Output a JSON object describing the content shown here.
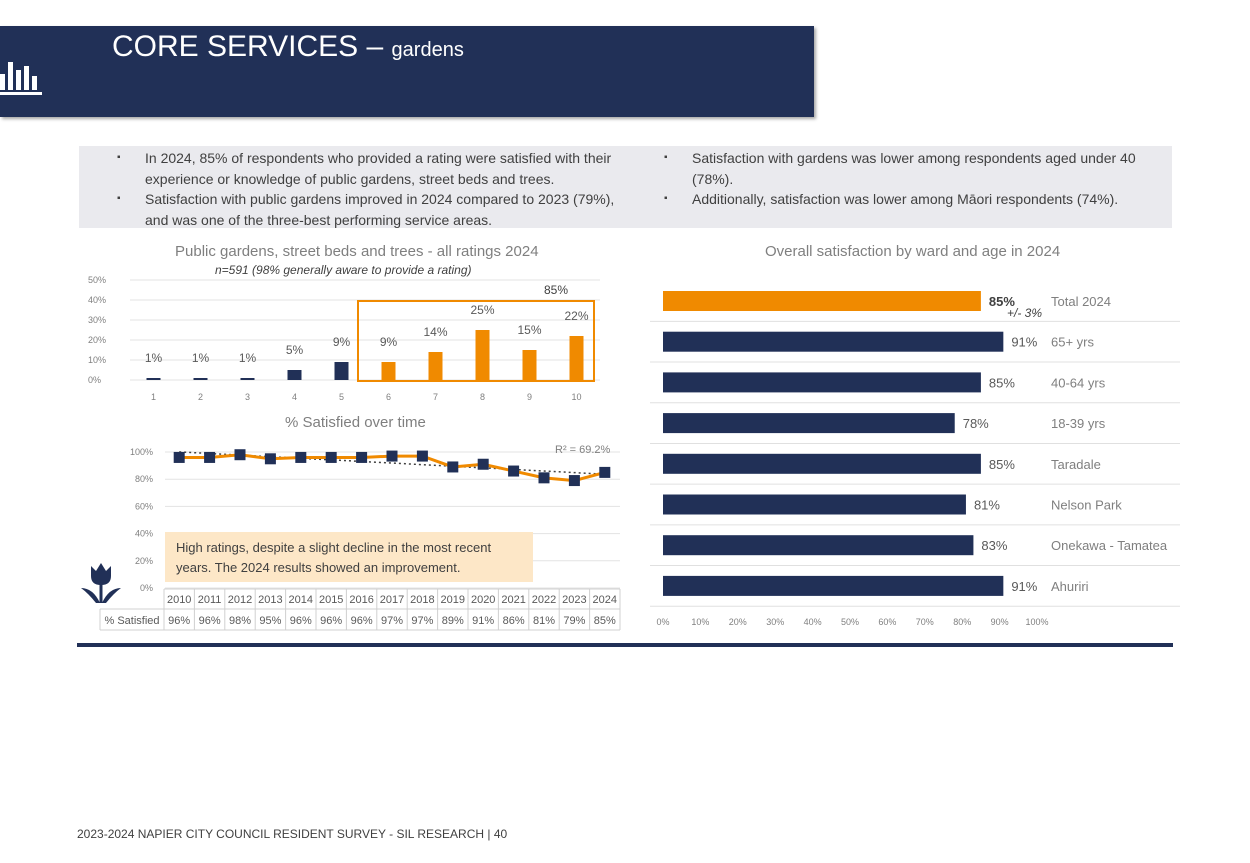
{
  "header": {
    "title_main": "CORE SERVICES – ",
    "title_sub": "gardens"
  },
  "bullets_left": [
    "In 2024, 85% of respondents who provided a rating were satisfied with their experience or knowledge of public gardens, street beds and trees.",
    "Satisfaction with public gardens improved in 2024 compared to 2023 (79%), and was one of the three-best performing service areas."
  ],
  "bullets_right": [
    "Satisfaction with gardens was lower among respondents aged under 40 (78%).",
    "Additionally, satisfaction was lower among Māori respondents (74%)."
  ],
  "note": "High ratings, despite a slight decline in the most recent years. The 2024 results showed an improvement.",
  "footer": "2023-2024 NAPIER CITY COUNCIL RESIDENT SURVEY - SIL RESEARCH | 40",
  "colors": {
    "navy": "#213057",
    "orange": "#f08a00"
  },
  "chart_data": [
    {
      "type": "bar",
      "title": "Public gardens, street beds and trees - all ratings 2024",
      "subtitle": "n=591 (98% generally aware to provide a rating)",
      "categories": [
        "1",
        "2",
        "3",
        "4",
        "5",
        "6",
        "7",
        "8",
        "9",
        "10"
      ],
      "values": [
        1,
        1,
        1,
        5,
        9,
        9,
        14,
        25,
        15,
        22
      ],
      "labels": [
        "1%",
        "1%",
        "1%",
        "5%",
        "9%",
        "9%",
        "14%",
        "25%",
        "15%",
        "22%"
      ],
      "highlight_label": "85%",
      "ylim": [
        0,
        50
      ],
      "yticks": [
        "0%",
        "10%",
        "20%",
        "30%",
        "40%",
        "50%"
      ]
    },
    {
      "type": "line",
      "title": "% Satisfied over time",
      "row_label": "% Satisfied",
      "x": [
        "2010",
        "2011",
        "2012",
        "2013",
        "2014",
        "2015",
        "2016",
        "2017",
        "2018",
        "2019",
        "2020",
        "2021",
        "2022",
        "2023",
        "2024"
      ],
      "values": [
        96,
        96,
        98,
        95,
        96,
        96,
        96,
        97,
        97,
        89,
        91,
        86,
        81,
        79,
        85
      ],
      "labels": [
        "96%",
        "96%",
        "98%",
        "95%",
        "96%",
        "96%",
        "96%",
        "97%",
        "97%",
        "89%",
        "91%",
        "86%",
        "81%",
        "79%",
        "85%"
      ],
      "trend_label": "R² = 69.2%",
      "ylim": [
        0,
        100
      ],
      "yticks": [
        "0%",
        "20%",
        "40%",
        "60%",
        "80%",
        "100%"
      ]
    },
    {
      "type": "bar",
      "orientation": "horizontal",
      "title": "Overall satisfaction by ward and age in 2024",
      "categories": [
        "Total 2024",
        "65+ yrs",
        "40-64 yrs",
        "18-39 yrs",
        "Taradale",
        "Nelson Park",
        "Onekawa - Tamatea",
        "Ahuriri"
      ],
      "values": [
        85,
        91,
        85,
        78,
        85,
        81,
        83,
        91
      ],
      "labels": [
        "85%",
        "91%",
        "85%",
        "78%",
        "85%",
        "81%",
        "83%",
        "91%"
      ],
      "margin_label": "+/- 3%",
      "xlim": [
        0,
        100
      ],
      "xticks": [
        "0%",
        "10%",
        "20%",
        "30%",
        "40%",
        "50%",
        "60%",
        "70%",
        "80%",
        "90%",
        "100%"
      ]
    }
  ]
}
